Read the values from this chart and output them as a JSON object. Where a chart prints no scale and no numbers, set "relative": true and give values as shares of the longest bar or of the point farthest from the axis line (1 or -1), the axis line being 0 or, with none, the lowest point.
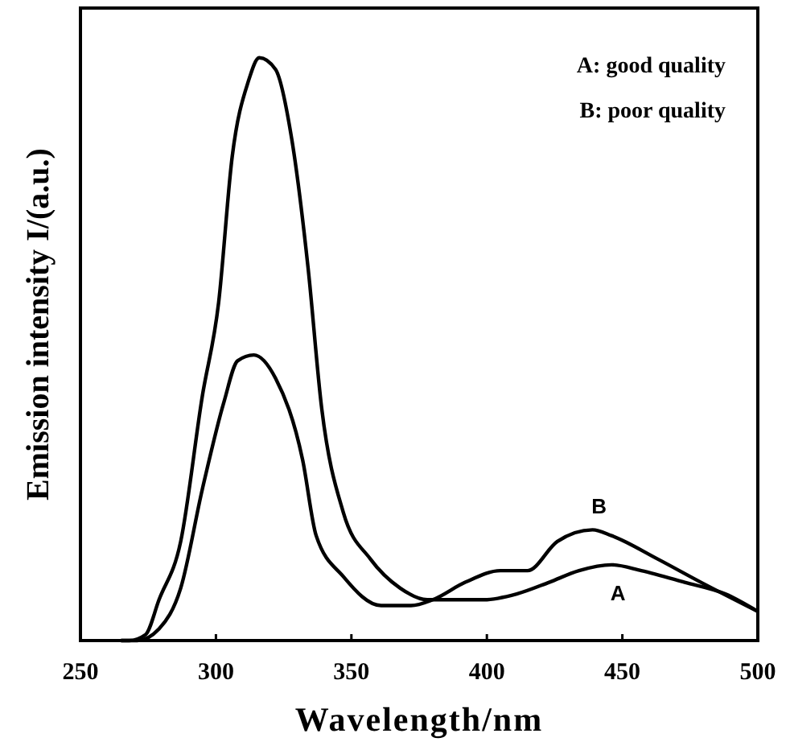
{
  "chart_data": {
    "type": "line",
    "relative": true,
    "xlabel": "Wavelength/nm",
    "ylabel": "Emission intensity I/(a.u.)",
    "xlim": [
      250,
      500
    ],
    "xticks": [
      250,
      300,
      350,
      400,
      450,
      500
    ],
    "annotations": [
      "A: good quality",
      "B: poor quality"
    ],
    "grid": false,
    "line_style": "solid",
    "series": [
      {
        "name": "A",
        "color": "#000000",
        "x": [
          265,
          268,
          274,
          279,
          287,
          295,
          301,
          306,
          312,
          316,
          322,
          328,
          334,
          339,
          347,
          357,
          368,
          378,
          386,
          399,
          411,
          423,
          434,
          446,
          457,
          473,
          488,
          500
        ],
        "values": [
          0,
          0,
          0.01,
          0.07,
          0.17,
          0.42,
          0.58,
          0.83,
          0.96,
          1,
          0.98,
          0.86,
          0.64,
          0.4,
          0.22,
          0.14,
          0.09,
          0.07,
          0.07,
          0.07,
          0.08,
          0.1,
          0.12,
          0.13,
          0.12,
          0.1,
          0.08,
          0.05
        ]
      },
      {
        "name": "B",
        "color": "#000000",
        "x": [
          265,
          271,
          279,
          287,
          295,
          303,
          308,
          314,
          322,
          332,
          337,
          347,
          361,
          372,
          380,
          392,
          405,
          415,
          426,
          439,
          446,
          463,
          479,
          500
        ],
        "values": [
          0,
          0,
          0.02,
          0.09,
          0.26,
          0.41,
          0.48,
          0.49,
          0.45,
          0.31,
          0.18,
          0.11,
          0.06,
          0.06,
          0.07,
          0.1,
          0.12,
          0.12,
          0.17,
          0.19,
          0.18,
          0.14,
          0.1,
          0.05
        ]
      }
    ]
  }
}
